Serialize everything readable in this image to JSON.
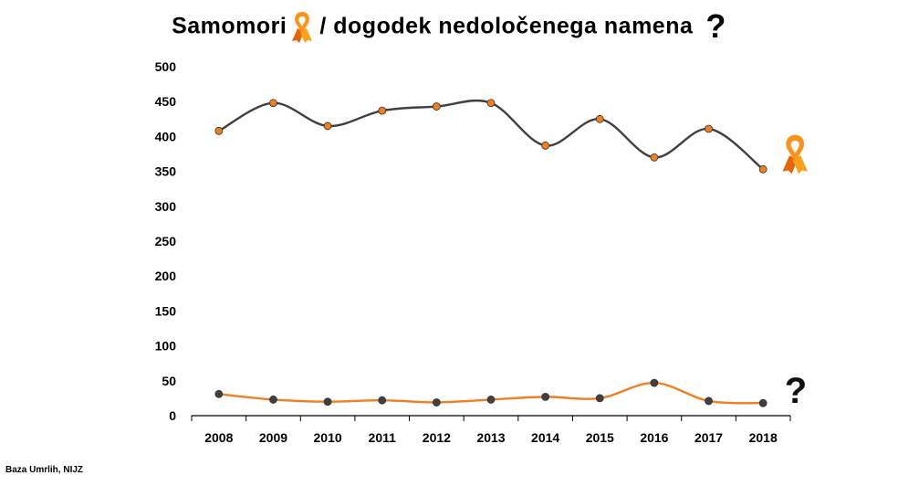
{
  "title": {
    "part1": "Samomori",
    "part2": "/ dogodek nedoločenega namena",
    "question_mark": "?"
  },
  "source": "Baza Umrlih, NIJZ",
  "chart_data": {
    "type": "line",
    "x": [
      "2008",
      "2009",
      "2010",
      "2011",
      "2012",
      "2013",
      "2014",
      "2015",
      "2016",
      "2017",
      "2018"
    ],
    "ylim": [
      0,
      500
    ],
    "yticks": [
      0,
      50,
      100,
      150,
      200,
      250,
      300,
      350,
      400,
      450,
      500
    ],
    "grid": false,
    "smooth": true,
    "series": [
      {
        "marker": "ribbon-icon",
        "line_color": "#404040",
        "point_color": "#f07f1f",
        "values": [
          408,
          448,
          415,
          437,
          443,
          448,
          387,
          425,
          370,
          411,
          353
        ]
      },
      {
        "marker": "question-mark",
        "line_color": "#f07f1f",
        "point_color": "#404040",
        "values": [
          31,
          23,
          20,
          22,
          19,
          23,
          27,
          25,
          47,
          21,
          18
        ]
      }
    ],
    "colors": {
      "ribbon_light": "#f9a21b",
      "ribbon_dark": "#e0650c"
    }
  }
}
